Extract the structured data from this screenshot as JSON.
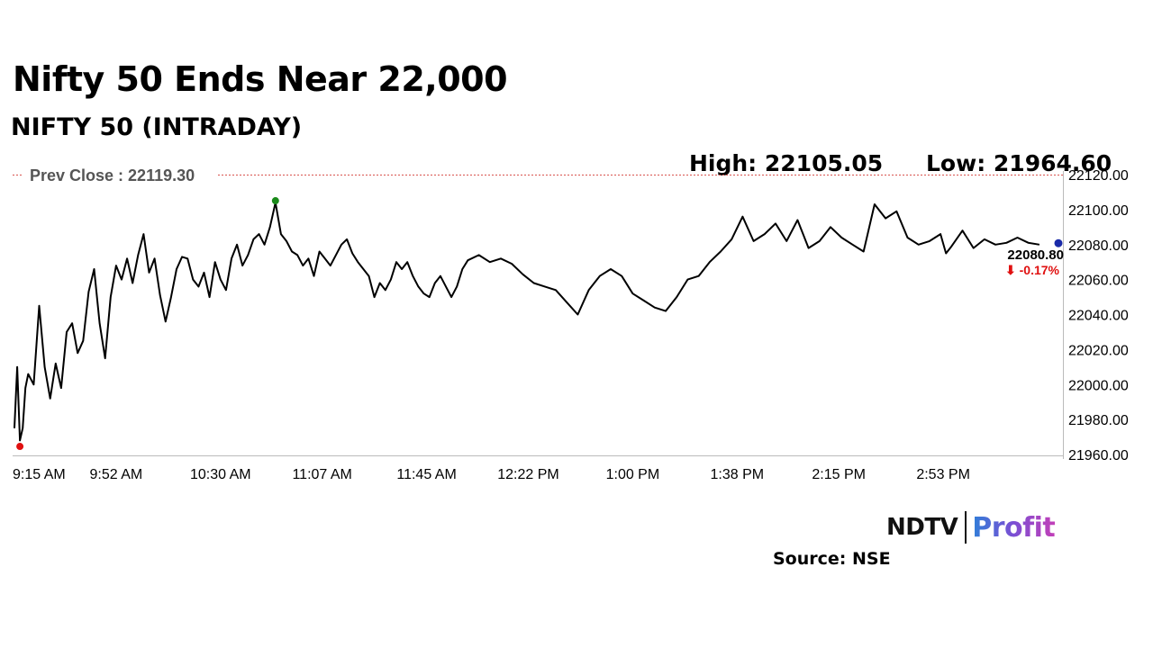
{
  "header": {
    "title": "Nifty 50 Ends Near 22,000",
    "subtitle": "NIFTY 50 (INTRADAY)"
  },
  "stats": {
    "high": "High: 22105.05",
    "low": "Low: 21964.60"
  },
  "chart_data": {
    "type": "line",
    "title": "NIFTY 50 (INTRADAY)",
    "x_tick_labels": [
      "9:15 AM",
      "9:52 AM",
      "10:30 AM",
      "11:07 AM",
      "11:45 AM",
      "12:22 PM",
      "1:00 PM",
      "1:38 PM",
      "2:15 PM",
      "2:53 PM"
    ],
    "y_tick_labels": [
      "22120.00",
      "22100.00",
      "22080.00",
      "22060.00",
      "22040.00",
      "22020.00",
      "22000.00",
      "21980.00",
      "21960.00"
    ],
    "ylim": [
      21960,
      22120
    ],
    "xlim": [
      "9:15 AM",
      "3:30 PM"
    ],
    "grid": false,
    "prev_close": {
      "label": "Prev Close : 22119.30",
      "value": 22119.3
    },
    "last": {
      "value_label": "22080.80",
      "change_label": "⬇ -0.17%",
      "value": 22080.8
    },
    "high_value": 22105.05,
    "low_value": 21964.6,
    "series": [
      {
        "x": [
          "9:15",
          "9:16",
          "9:17",
          "9:18",
          "9:19",
          "9:20",
          "9:22",
          "9:24",
          "9:26",
          "9:28",
          "9:30",
          "9:32",
          "9:34",
          "9:36",
          "9:38",
          "9:40",
          "9:42",
          "9:44",
          "9:46",
          "9:48",
          "9:50",
          "9:52",
          "9:54",
          "9:56",
          "9:58",
          "10:00",
          "10:02",
          "10:04",
          "10:06",
          "10:08",
          "10:10",
          "10:12",
          "10:14",
          "10:16",
          "10:18",
          "10:20",
          "10:22",
          "10:24",
          "10:26",
          "10:28",
          "10:30",
          "10:32",
          "10:34",
          "10:36",
          "10:38",
          "10:40",
          "10:42",
          "10:44",
          "10:46",
          "10:48",
          "10:50",
          "10:52",
          "10:54",
          "10:56",
          "10:58",
          "11:00",
          "11:02",
          "11:04",
          "11:06",
          "11:08",
          "11:10",
          "11:12",
          "11:14",
          "11:16",
          "11:18",
          "11:20",
          "11:22",
          "11:24",
          "11:26",
          "11:28",
          "11:30",
          "11:32",
          "11:34",
          "11:36",
          "11:38",
          "11:40",
          "11:42",
          "11:44",
          "11:46",
          "11:48",
          "11:50",
          "11:52",
          "11:54",
          "11:56",
          "11:58",
          "12:00",
          "12:04",
          "12:08",
          "12:12",
          "12:16",
          "12:20",
          "12:24",
          "12:28",
          "12:32",
          "12:36",
          "12:40",
          "12:44",
          "12:48",
          "12:52",
          "12:56",
          "13:00",
          "13:04",
          "13:08",
          "13:12",
          "13:16",
          "13:20",
          "13:24",
          "13:28",
          "13:32",
          "13:36",
          "13:40",
          "13:44",
          "13:48",
          "13:52",
          "13:56",
          "14:00",
          "14:04",
          "14:08",
          "14:12",
          "14:16",
          "14:20",
          "14:24",
          "14:28",
          "14:32",
          "14:36",
          "14:40",
          "14:44",
          "14:48",
          "14:52",
          "14:54",
          "14:56",
          "15:00",
          "15:04",
          "15:08",
          "15:12",
          "15:16",
          "15:20",
          "15:24",
          "15:28"
        ],
        "y": [
          21975,
          22010,
          21968,
          21975,
          21998,
          22006,
          22000,
          22045,
          22010,
          21992,
          22012,
          21998,
          22030,
          22035,
          22018,
          22025,
          22053,
          22066,
          22035,
          22015,
          22050,
          22068,
          22060,
          22072,
          22058,
          22074,
          22086,
          22064,
          22072,
          22051,
          22036,
          22050,
          22066,
          22073,
          22072,
          22060,
          22056,
          22064,
          22050,
          22070,
          22060,
          22054,
          22072,
          22080,
          22068,
          22074,
          22083,
          22086,
          22080,
          22090,
          22104,
          22086,
          22082,
          22076,
          22074,
          22068,
          22072,
          22062,
          22076,
          22072,
          22068,
          22074,
          22080,
          22083,
          22075,
          22070,
          22066,
          22062,
          22050,
          22058,
          22054,
          22060,
          22070,
          22066,
          22070,
          22062,
          22056,
          22052,
          22050,
          22058,
          22062,
          22056,
          22050,
          22056,
          22066,
          22071,
          22074,
          22070,
          22072,
          22069,
          22063,
          22058,
          22056,
          22054,
          22047,
          22040,
          22054,
          22062,
          22066,
          22062,
          22052,
          22048,
          22044,
          22042,
          22050,
          22060,
          22062,
          22070,
          22076,
          22083,
          22096,
          22082,
          22086,
          22092,
          22082,
          22094,
          22078,
          22082,
          22090,
          22084,
          22080,
          22076,
          22103,
          22095,
          22099,
          22084,
          22080,
          22082,
          22086,
          22075,
          22079,
          22088,
          22078,
          22083,
          22080,
          22081,
          22084,
          22081,
          22080
        ]
      }
    ]
  },
  "brand": {
    "ndtv": "NDTV",
    "profit": "Profit"
  },
  "source": "Source: NSE",
  "colors": {
    "line": "#000000",
    "prev_close_line": "#d9534f",
    "high_marker": "#1a8a1a",
    "low_marker": "#e01010",
    "last_marker": "#1a2aa8",
    "change_negative": "#e01010",
    "axis": "#bbbbbb"
  }
}
